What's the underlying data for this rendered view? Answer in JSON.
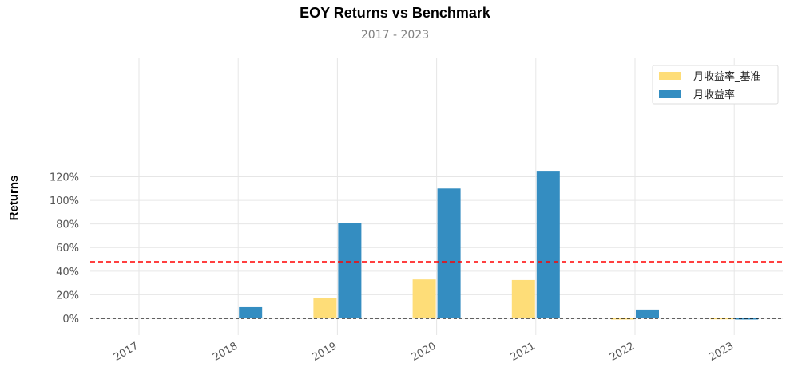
{
  "chart_data": {
    "type": "bar",
    "title": "EOY Returns  vs Benchmark",
    "subtitle": "2017 - 2023",
    "ylabel": "Returns",
    "xlabel": "",
    "categories": [
      "2017",
      "2018",
      "2019",
      "2020",
      "2021",
      "2022",
      "2023"
    ],
    "series": [
      {
        "name": "月收益率_基准",
        "color": "#fedd78",
        "values": [
          0,
          0,
          17,
          33,
          32.5,
          -1,
          -0.5
        ]
      },
      {
        "name": "月收益率",
        "color": "#348dc1",
        "values": [
          0,
          9.5,
          81,
          110,
          125,
          7.5,
          -1
        ]
      }
    ],
    "yticks": [
      0,
      20,
      40,
      60,
      80,
      100,
      120
    ],
    "ytick_labels": [
      "0%",
      "20%",
      "40%",
      "60%",
      "80%",
      "100%",
      "120%"
    ],
    "ylim": [
      -8,
      131
    ],
    "mean_line": {
      "value": 48,
      "color": "#ff0000",
      "style": "dashed"
    },
    "zero_line": {
      "value": 0,
      "color": "#000000",
      "style": "dashed"
    },
    "grid": true,
    "legend_position": "top-right"
  }
}
